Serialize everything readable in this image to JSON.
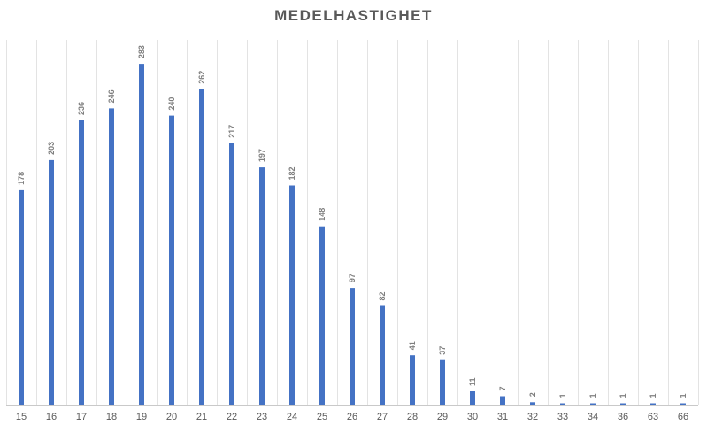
{
  "chart_data": {
    "type": "bar",
    "title": "MEDELHASTIGHET",
    "xlabel": "",
    "ylabel": "",
    "categories": [
      "15",
      "16",
      "17",
      "18",
      "19",
      "20",
      "21",
      "22",
      "23",
      "24",
      "25",
      "26",
      "27",
      "28",
      "29",
      "30",
      "31",
      "32",
      "33",
      "34",
      "36",
      "63",
      "66"
    ],
    "values": [
      178,
      203,
      236,
      246,
      283,
      240,
      262,
      217,
      197,
      182,
      148,
      97,
      82,
      41,
      37,
      11,
      7,
      2,
      1,
      1,
      1,
      1,
      1
    ],
    "ylim": [
      0,
      300
    ],
    "grid": "vertical",
    "legend": "none",
    "bar_color": "#4472c4",
    "data_labels": "rotated-above"
  }
}
